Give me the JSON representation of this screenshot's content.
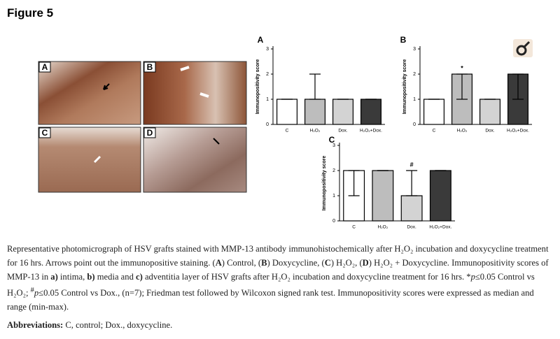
{
  "figure_label": "Figure 5",
  "panels": [
    "A",
    "B",
    "C",
    "D"
  ],
  "chart_data": [
    {
      "type": "bar",
      "title": "A",
      "y_label": "Immunopositivity score",
      "categories": [
        "C",
        "H₂O₂",
        "Dox.",
        "H₂O₂+Dox."
      ],
      "values": [
        1,
        1,
        1,
        1
      ],
      "range_min": [
        1,
        1,
        1,
        1
      ],
      "range_max": [
        1,
        2,
        1,
        1
      ],
      "colors": [
        "#ffffff",
        "#bdbdbd",
        "#d3d3d3",
        "#3a3a3a"
      ],
      "bar_annotations": [
        null,
        null,
        null,
        null
      ],
      "ylim": [
        0,
        3
      ],
      "yticks": [
        0,
        1,
        2,
        3
      ]
    },
    {
      "type": "bar",
      "title": "B",
      "y_label": "Immunopositivity score",
      "categories": [
        "C",
        "H₂O₂",
        "Dox.",
        "H₂O₂+Dox."
      ],
      "values": [
        1,
        2,
        1,
        2
      ],
      "range_min": [
        1,
        1,
        1,
        1
      ],
      "range_max": [
        1,
        2,
        1,
        2
      ],
      "colors": [
        "#ffffff",
        "#bdbdbd",
        "#d3d3d3",
        "#3a3a3a"
      ],
      "bar_annotations": [
        null,
        "*",
        null,
        null
      ],
      "ylim": [
        0,
        3
      ],
      "yticks": [
        0,
        1,
        2,
        3
      ]
    },
    {
      "type": "bar",
      "title": "C",
      "y_label": "Immunopositivity score",
      "categories": [
        "C",
        "H₂O₂",
        "Dox.",
        "H₂O₂+Dox."
      ],
      "values": [
        2,
        2,
        1,
        2
      ],
      "range_min": [
        1,
        2,
        1,
        2
      ],
      "range_max": [
        2,
        2,
        2,
        2
      ],
      "colors": [
        "#ffffff",
        "#bdbdbd",
        "#d3d3d3",
        "#3a3a3a"
      ],
      "bar_annotations": [
        null,
        null,
        "#",
        null
      ],
      "ylim": [
        0,
        3
      ],
      "yticks": [
        0,
        1,
        2,
        3
      ]
    }
  ],
  "caption": [
    "Representative photomicrograph of HSV grafts stained with MMP-13 antibody immunohistochemically after H₂O₂ incubation and doxycycline treatment for 16 hrs. Arrows point out the immunopositive staining. (",
    "A",
    ") Control, (",
    "B",
    ") Doxycycline, (",
    "C",
    ") H₂O₂, (",
    "D",
    ") H₂O₂ + Doxycycline. Immunopositivity scores of MMP-13 in ",
    "a)",
    " intima, ",
    "b)",
    " media and ",
    "c)",
    " adventitia layer of HSV grafts after H₂O₂ incubation and doxycycline treatment for 16 hrs. *",
    "p",
    "≤0.05 Control vs H₂O₂; ",
    "#",
    "p",
    "≤0.05 Control vs Dox., (n=7); Friedman test followed by Wilcoxon signed rank test. Immunopositivity scores were expressed as median and range (min-max)."
  ],
  "abbreviations": {
    "label": "Abbreviations:",
    "text": " C, control; Dox., doxycycline."
  }
}
